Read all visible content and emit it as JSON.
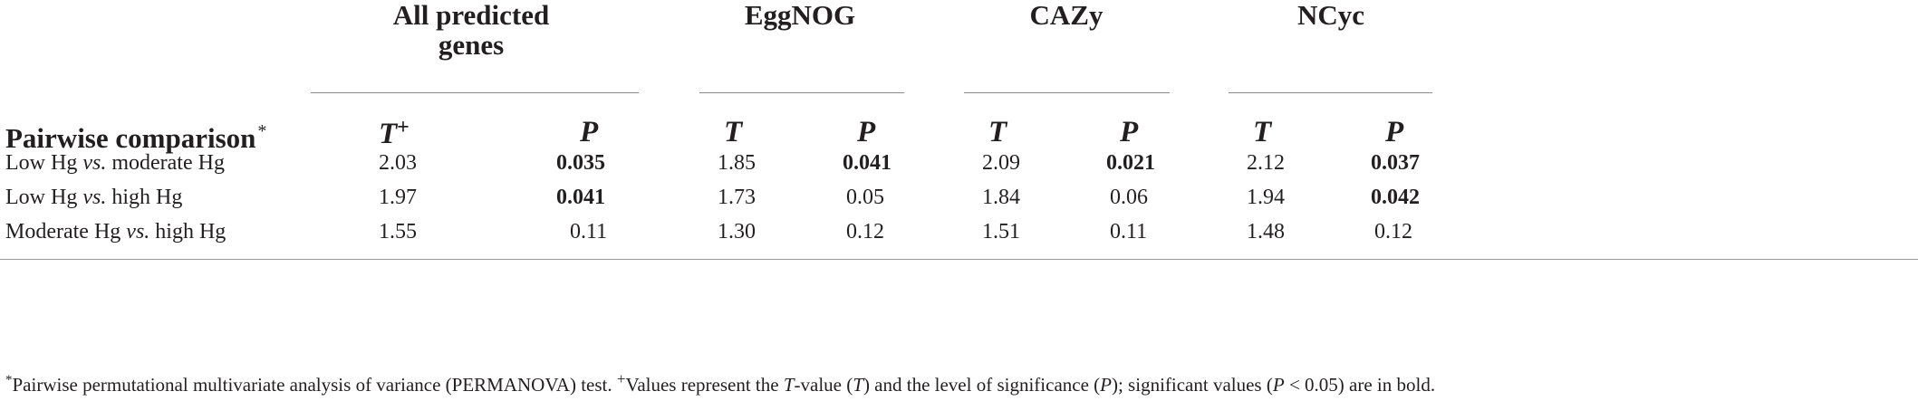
{
  "groups": {
    "all_predicted_line1": "All predicted",
    "all_predicted_line2": "genes",
    "eggnog": "EggNOG",
    "cazy": "CAZy",
    "ncyc": "NCyc"
  },
  "row_header": {
    "label": "Pairwise comparison",
    "marker": "*"
  },
  "col_headers": {
    "t": "T",
    "t_plus": "+",
    "p": "P"
  },
  "rows": [
    {
      "label_a": "Low Hg ",
      "label_vs": "vs.",
      "label_b": " moderate Hg",
      "values": [
        "2.03",
        "0.035",
        "1.85",
        "0.041",
        "2.09",
        "0.021",
        "2.12",
        "0.037"
      ]
    },
    {
      "label_a": "Low Hg ",
      "label_vs": "vs.",
      "label_b": " high Hg",
      "values": [
        "1.97",
        "0.041",
        "1.73",
        "0.05",
        "1.84",
        "0.06",
        "1.94",
        "0.042"
      ]
    },
    {
      "label_a": "Moderate Hg ",
      "label_vs": "vs.",
      "label_b": " high Hg",
      "values": [
        "1.55",
        "0.11",
        "1.30",
        "0.12",
        "1.51",
        "0.11",
        "1.48",
        "0.12"
      ]
    }
  ],
  "footnote": {
    "star": "*",
    "part1": "Pairwise permutational multivariate analysis of variance (PERMANOVA) test. ",
    "plus": "+",
    "part2": "Values represent the ",
    "t_italic": "T",
    "part3": "-value (",
    "t_paren": "T",
    "part4": ") and the level of significance (",
    "p_paren": "P",
    "part5": "); significant values (",
    "p_cond": "P",
    "part6": " < 0.05) are in bold."
  }
}
